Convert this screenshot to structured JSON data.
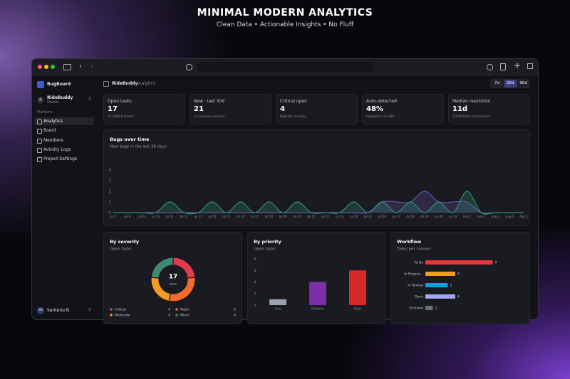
{
  "header": {
    "title": "MINIMAL MODERN ANALYTICS",
    "subtitle": "Clean Data • Actionable Insights • No Fluff"
  },
  "sidebar": {
    "brand": "BugBoard",
    "workspace": {
      "avatar": "R",
      "name": "RideBuddy",
      "role": "Owner"
    },
    "section": "Platform",
    "nav": [
      "Analytics",
      "Board",
      "Members",
      "Activity Logs",
      "Project Settings"
    ],
    "active_nav": 0,
    "user": {
      "initials": "SB",
      "name": "Santanu B."
    }
  },
  "topbar": {
    "project": "RideBuddy",
    "page": "· Analytics",
    "ranges": [
      "7d",
      "30d",
      "90d"
    ],
    "active_range": 1
  },
  "kpis": [
    {
      "label": "Open tasks",
      "value": "17",
      "note": "21 total tracked"
    },
    {
      "label": "New · last 30d",
      "value": "21",
      "note": "vs. previous period"
    },
    {
      "label": "Critical open",
      "value": "4",
      "note": "Highest severity"
    },
    {
      "label": "Auto-detected",
      "value": "48%",
      "note": "Reported via SDK"
    },
    {
      "label": "Median resolution",
      "value": "11d",
      "note": "3,508 total occurrences"
    }
  ],
  "chart_data": [
    {
      "type": "area",
      "title": "Bugs over time",
      "subtitle": "New bugs in the last 30 days",
      "categories": [
        "Jul 7",
        "Jul 8",
        "Jul 9",
        "Jul 10",
        "Jul 11",
        "Jul 12",
        "Jul 13",
        "Jul 14",
        "Jul 15",
        "Jul 16",
        "Jul 17",
        "Jul 18",
        "Jul 19",
        "Jul 20",
        "Jul 21",
        "Jul 22",
        "Jul 23",
        "Jul 24",
        "Jul 25",
        "Jul 26",
        "Jul 27",
        "Jul 28",
        "Jul 29",
        "Jul 30",
        "Jul 31",
        "Aug 1",
        "Aug 2",
        "Aug 3",
        "Aug 4",
        "Aug 5"
      ],
      "series": [
        {
          "color": "#2fae8a",
          "values": [
            0,
            0,
            0,
            0,
            1,
            0,
            0,
            1,
            0,
            1,
            0,
            1,
            0,
            1,
            0,
            0,
            0,
            1,
            0,
            1,
            0,
            1,
            0,
            1,
            0,
            2,
            0,
            0,
            0,
            0
          ]
        },
        {
          "color": "#7a5ccf",
          "values": [
            0,
            0,
            0,
            0,
            0,
            0,
            0,
            0,
            0,
            0,
            0,
            0,
            0,
            0,
            0,
            0,
            0,
            0,
            0,
            1,
            1,
            1,
            2,
            1,
            1,
            1,
            0,
            0,
            0,
            0
          ]
        }
      ],
      "ylim": [
        0,
        4
      ],
      "yticks": [
        0,
        1,
        2,
        3,
        4
      ]
    },
    {
      "type": "donut",
      "title": "By severity",
      "subtitle": "Open tasks",
      "total": 17,
      "center_label": "open",
      "categories": [
        "Critical",
        "Major",
        "Moderate",
        "Minor"
      ],
      "values": [
        4,
        5,
        4,
        4
      ],
      "colors": [
        "#e23b4e",
        "#f26b2a",
        "#f59a23",
        "#3f8a6e"
      ]
    },
    {
      "type": "bar",
      "title": "By priority",
      "subtitle": "Open tasks",
      "categories": [
        "Low",
        "Medium",
        "High"
      ],
      "values": [
        1,
        4,
        6
      ],
      "colors": [
        "#9aa3b2",
        "#7b2fa8",
        "#d42a2a"
      ],
      "ylim": [
        0,
        8
      ],
      "yticks": [
        0,
        2,
        4,
        6,
        8
      ]
    },
    {
      "type": "hbar",
      "title": "Workflow",
      "subtitle": "Tasks per column",
      "categories": [
        "To Do",
        "In Progres...",
        "In Review",
        "Done",
        "Archived"
      ],
      "values": [
        9,
        4,
        3,
        4,
        1
      ],
      "colors": [
        "#e8343f",
        "#f59a23",
        "#1d9be0",
        "#a4a6f0",
        "#6b6f7a"
      ]
    }
  ]
}
